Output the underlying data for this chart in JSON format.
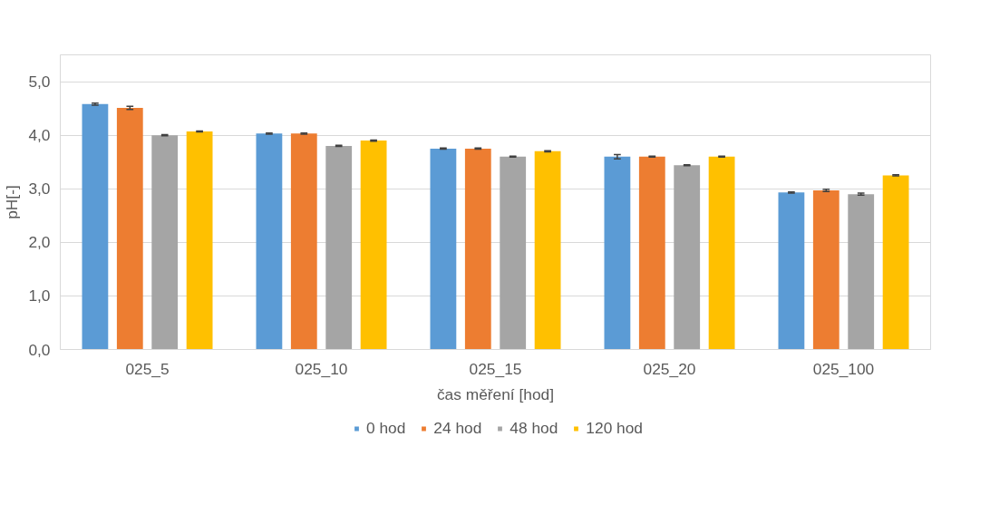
{
  "chart_data": {
    "type": "bar",
    "xlabel": "čas měření [hod]",
    "ylabel": "pH[-]",
    "categories": [
      "025_5",
      "025_10",
      "025_15",
      "025_20",
      "025_100"
    ],
    "series": [
      {
        "name": "0 hod",
        "color": "#5b9bd5",
        "values": [
          4.58,
          4.03,
          3.75,
          3.6,
          2.93
        ],
        "errors": [
          0.02,
          0.01,
          0.01,
          0.04,
          0.01
        ]
      },
      {
        "name": "24 hod",
        "color": "#ed7d31",
        "values": [
          4.51,
          4.03,
          3.75,
          3.6,
          2.97
        ],
        "errors": [
          0.03,
          0.01,
          0.01,
          0.01,
          0.02
        ]
      },
      {
        "name": "48 hod",
        "color": "#a5a5a5",
        "values": [
          4.0,
          3.8,
          3.6,
          3.44,
          2.9
        ],
        "errors": [
          0.01,
          0.01,
          0.01,
          0.01,
          0.02
        ]
      },
      {
        "name": "120 hod",
        "color": "#ffc000",
        "values": [
          4.07,
          3.9,
          3.7,
          3.6,
          3.25
        ],
        "errors": [
          0.01,
          0.01,
          0.01,
          0.01,
          0.01
        ]
      }
    ],
    "ylim": [
      0,
      5.5
    ],
    "yticks": [
      {
        "value": 0,
        "label": "0,0"
      },
      {
        "value": 1,
        "label": "1,0"
      },
      {
        "value": 2,
        "label": "2,0"
      },
      {
        "value": 3,
        "label": "3,0"
      },
      {
        "value": 4,
        "label": "4,0"
      },
      {
        "value": 5,
        "label": "5,0"
      }
    ],
    "grid": "y",
    "legend": "bottom"
  }
}
